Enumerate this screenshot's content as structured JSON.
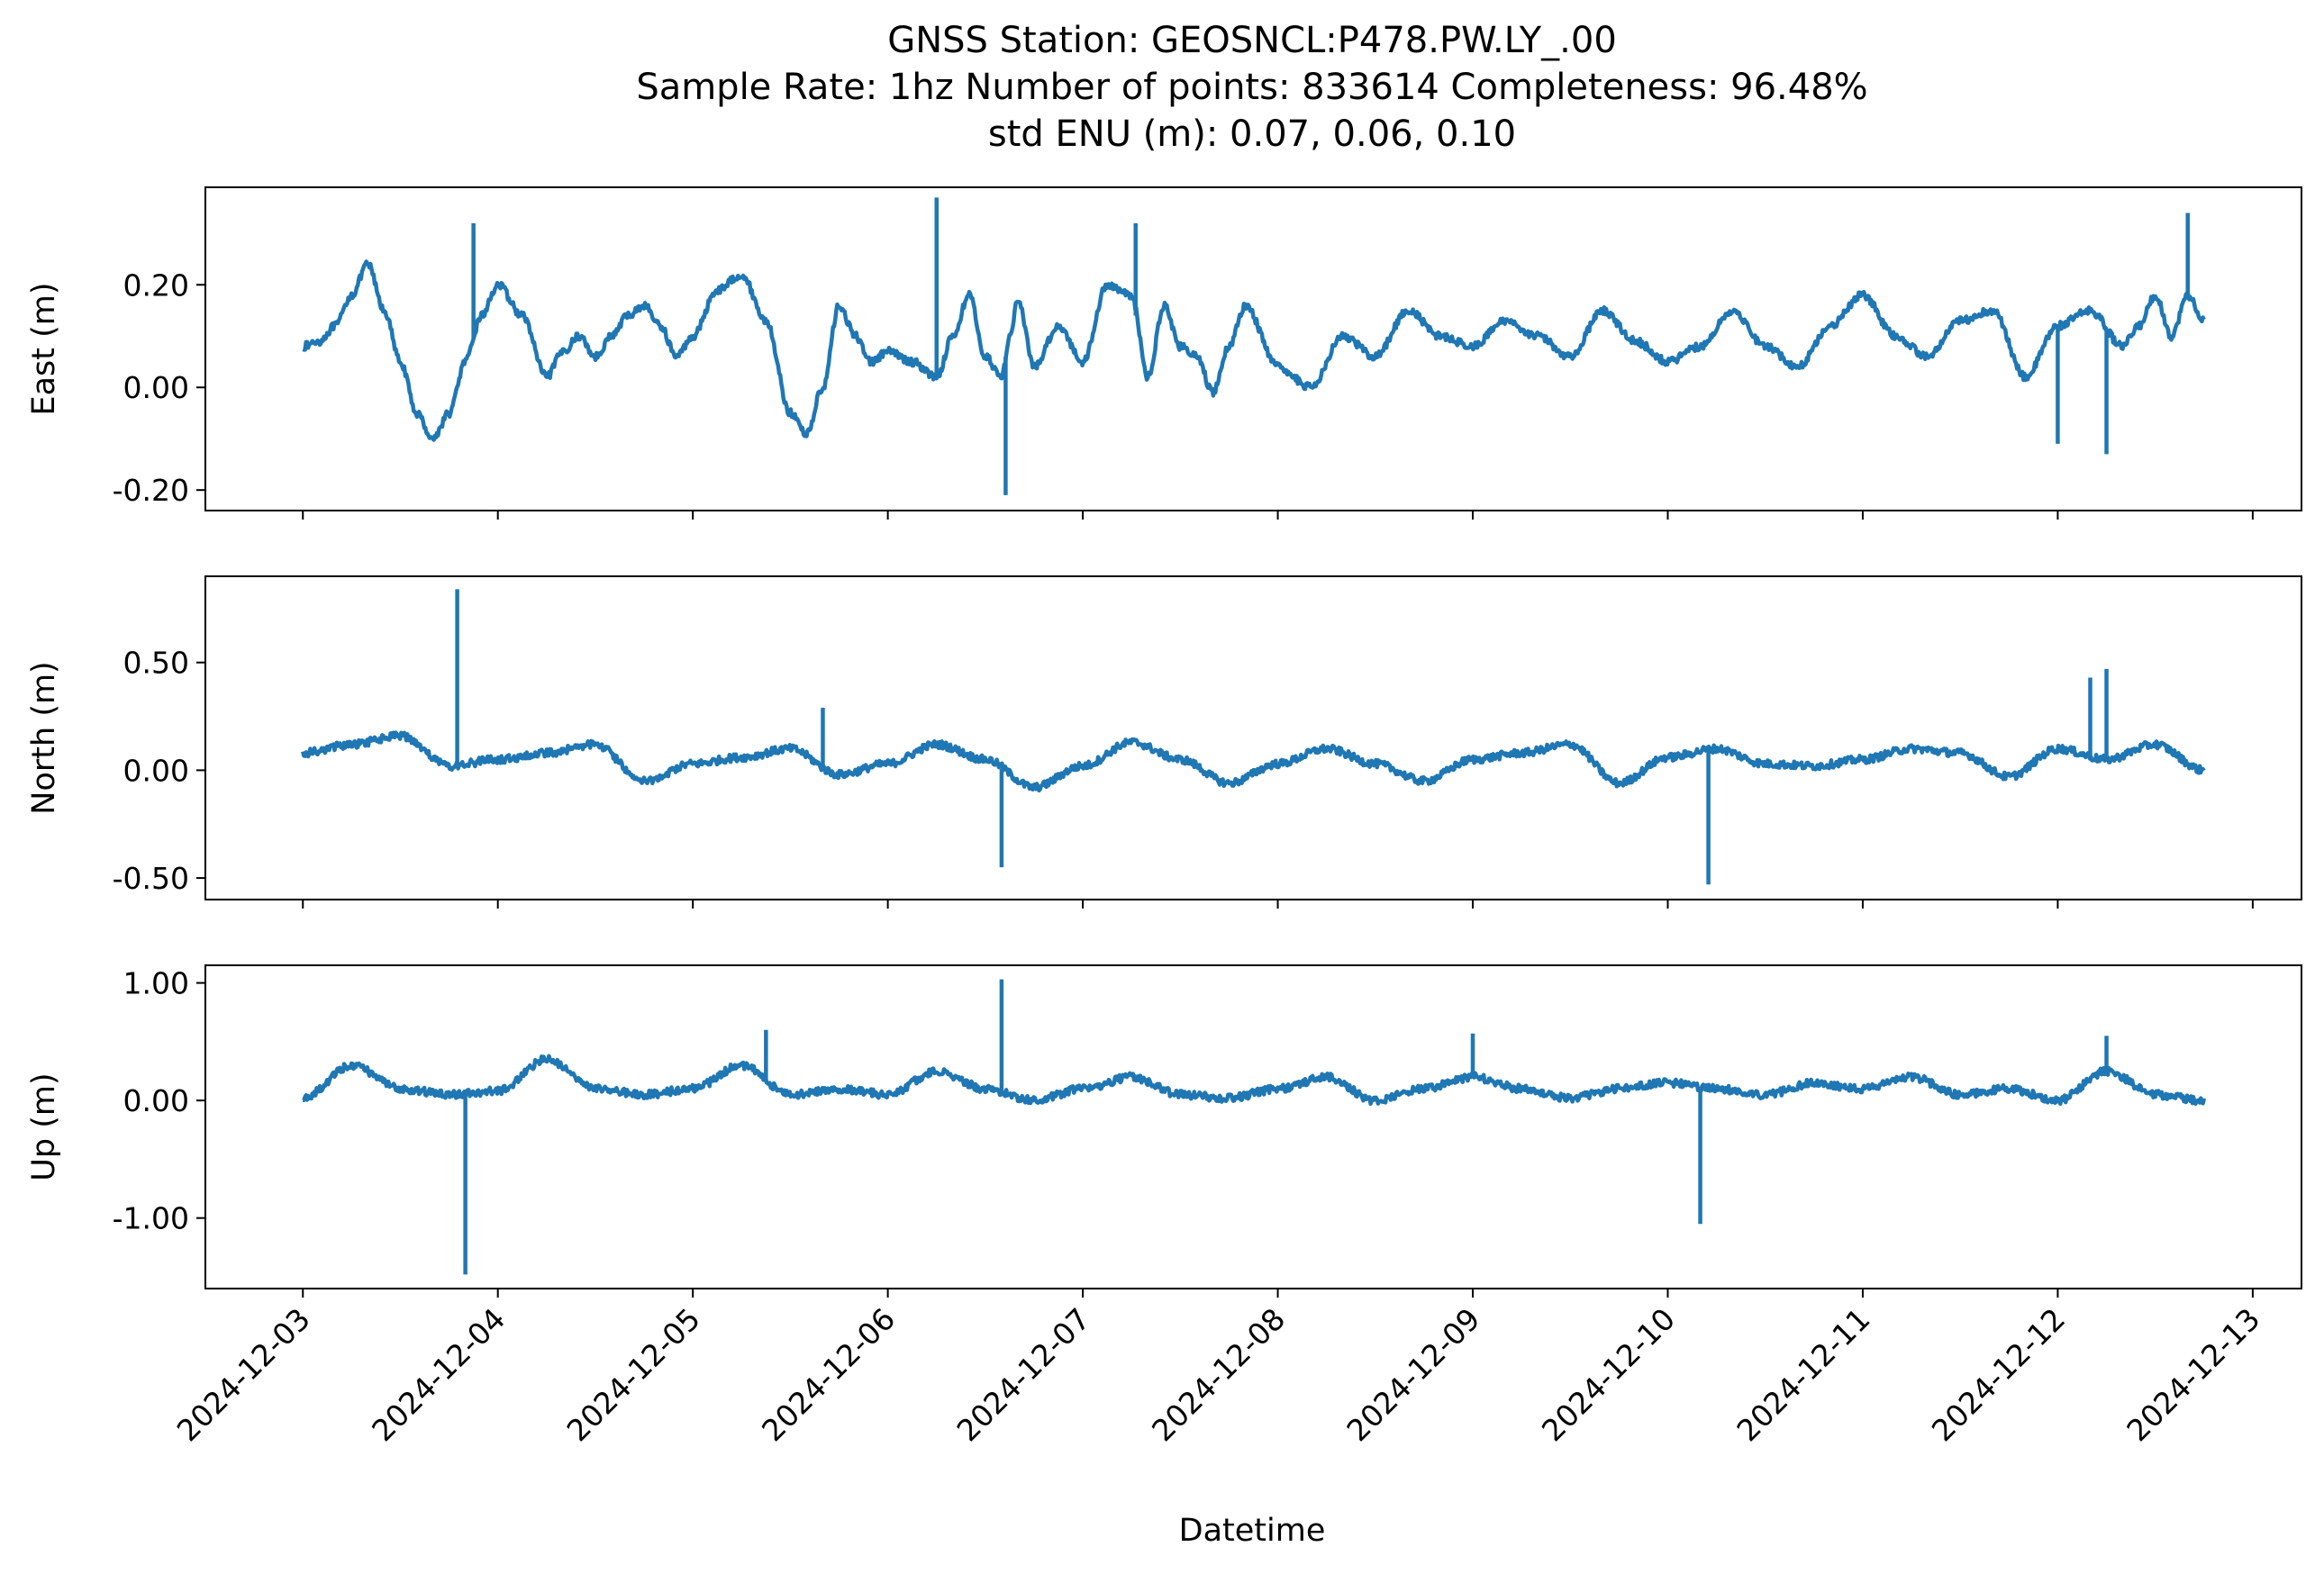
{
  "title_lines": [
    "GNSS Station: GEOSNCL:P478.PW.LY_.00",
    "Sample Rate: 1hz   Number of points: 833614    Completeness:  96.48%",
    "std ENU (m):  0.07, 0.06, 0.10"
  ],
  "x_axis": {
    "label": "Datetime",
    "tick_labels": [
      "2024-12-03",
      "2024-12-04",
      "2024-12-05",
      "2024-12-06",
      "2024-12-07",
      "2024-12-08",
      "2024-12-09",
      "2024-12-10",
      "2024-12-11",
      "2024-12-12",
      "2024-12-13"
    ]
  },
  "colors": {
    "series": "#1f77b4",
    "axes": "#000000",
    "background": "#ffffff"
  },
  "chart_data": [
    {
      "type": "line",
      "title": "",
      "xlabel": "",
      "ylabel": "East (m)",
      "xlim": [
        "2024-12-02T12:00",
        "2024-12-13T06:00"
      ],
      "ylim": [
        -0.24,
        0.39
      ],
      "yticks": [
        -0.2,
        0.0,
        0.2
      ],
      "ytick_labels": [
        "-0.20",
        "0.00",
        "0.20"
      ],
      "grid": false,
      "series": [
        {
          "x": [
            "2024-12-03T00:00",
            "2024-12-03T02:00",
            "2024-12-03T04:00",
            "2024-12-03T06:00",
            "2024-12-03T08:00",
            "2024-12-03T10:00",
            "2024-12-03T12:00",
            "2024-12-03T14:00",
            "2024-12-03T16:00",
            "2024-12-03T18:00",
            "2024-12-03T20:00",
            "2024-12-03T22:00",
            "2024-12-04T00:00",
            "2024-12-04T03:00",
            "2024-12-04T06:00",
            "2024-12-04T08:00",
            "2024-12-04T10:00",
            "2024-12-04T12:00",
            "2024-12-04T14:00",
            "2024-12-04T16:00",
            "2024-12-04T18:00",
            "2024-12-04T20:00",
            "2024-12-04T22:00",
            "2024-12-05T00:00",
            "2024-12-05T03:00",
            "2024-12-05T06:00",
            "2024-12-05T09:00",
            "2024-12-05T12:00",
            "2024-12-05T14:00",
            "2024-12-05T16:00",
            "2024-12-05T18:00",
            "2024-12-05T20:00",
            "2024-12-05T22:00",
            "2024-12-06T00:00",
            "2024-12-06T03:00",
            "2024-12-06T06:00",
            "2024-12-06T08:00",
            "2024-12-06T10:00",
            "2024-12-06T12:00",
            "2024-12-06T14:00",
            "2024-12-06T15:00",
            "2024-12-06T16:00",
            "2024-12-06T18:00",
            "2024-12-06T21:00",
            "2024-12-07T00:00",
            "2024-12-07T03:00",
            "2024-12-07T06:00",
            "2024-12-07T08:00",
            "2024-12-07T10:00",
            "2024-12-07T12:00",
            "2024-12-07T14:00",
            "2024-12-07T16:00",
            "2024-12-07T18:00",
            "2024-12-07T20:00",
            "2024-12-08T00:00",
            "2024-12-08T04:00",
            "2024-12-08T08:00",
            "2024-12-08T12:00",
            "2024-12-08T16:00",
            "2024-12-08T20:00",
            "2024-12-09T00:00",
            "2024-12-09T04:00",
            "2024-12-09T08:00",
            "2024-12-09T12:00",
            "2024-12-09T16:00",
            "2024-12-09T20:00",
            "2024-12-10T00:00",
            "2024-12-10T04:00",
            "2024-12-10T08:00",
            "2024-12-10T12:00",
            "2024-12-10T16:00",
            "2024-12-10T20:00",
            "2024-12-11T00:00",
            "2024-12-11T04:00",
            "2024-12-11T08:00",
            "2024-12-11T12:00",
            "2024-12-11T16:00",
            "2024-12-11T20:00",
            "2024-12-12T00:00",
            "2024-12-12T04:00",
            "2024-12-12T08:00",
            "2024-12-12T10:00",
            "2024-12-12T12:00",
            "2024-12-12T14:00",
            "2024-12-12T16:00",
            "2024-12-12T18:00"
          ],
          "y": [
            0.08,
            0.09,
            0.12,
            0.18,
            0.24,
            0.15,
            0.05,
            -0.05,
            -0.1,
            -0.05,
            0.05,
            0.14,
            0.2,
            0.14,
            0.02,
            0.07,
            0.1,
            0.06,
            0.1,
            0.14,
            0.16,
            0.12,
            0.06,
            0.1,
            0.19,
            0.22,
            0.13,
            -0.05,
            -0.09,
            0.0,
            0.16,
            0.1,
            0.05,
            0.07,
            0.05,
            0.02,
            0.1,
            0.18,
            0.06,
            0.02,
            0.1,
            0.17,
            0.04,
            0.12,
            0.05,
            0.2,
            0.18,
            0.02,
            0.16,
            0.08,
            0.06,
            -0.01,
            0.08,
            0.16,
            0.04,
            0.0,
            0.1,
            0.06,
            0.15,
            0.1,
            0.08,
            0.13,
            0.1,
            0.06,
            0.15,
            0.09,
            0.05,
            0.08,
            0.15,
            0.08,
            0.04,
            0.12,
            0.18,
            0.1,
            0.06,
            0.13,
            0.15,
            0.02,
            0.12,
            0.15,
            0.08,
            0.12,
            0.18,
            0.1,
            0.18,
            0.13
          ],
          "spikes": [
            {
              "x": "2024-12-03T21:00",
              "y": 0.32
            },
            {
              "x": "2024-12-06T06:00",
              "y": 0.37
            },
            {
              "x": "2024-12-06T14:30",
              "y": -0.21
            },
            {
              "x": "2024-12-07T06:30",
              "y": 0.32
            },
            {
              "x": "2024-12-12T00:00",
              "y": -0.11
            },
            {
              "x": "2024-12-12T06:00",
              "y": -0.13
            },
            {
              "x": "2024-12-12T16:00",
              "y": 0.34
            }
          ]
        }
      ]
    },
    {
      "type": "line",
      "title": "",
      "xlabel": "",
      "ylabel": "North (m)",
      "xlim": [
        "2024-12-02T12:00",
        "2024-12-13T06:00"
      ],
      "ylim": [
        -0.6,
        0.9
      ],
      "yticks": [
        -0.5,
        0.0,
        0.5
      ],
      "ytick_labels": [
        "-0.50",
        "0.00",
        "0.50"
      ],
      "grid": false,
      "series": [
        {
          "x": [
            "2024-12-03T00:00",
            "2024-12-03T06:00",
            "2024-12-03T12:00",
            "2024-12-03T18:00",
            "2024-12-04T00:00",
            "2024-12-04T06:00",
            "2024-12-04T12:00",
            "2024-12-04T18:00",
            "2024-12-05T00:00",
            "2024-12-05T06:00",
            "2024-12-05T12:00",
            "2024-12-05T18:00",
            "2024-12-06T00:00",
            "2024-12-06T06:00",
            "2024-12-06T12:00",
            "2024-12-06T18:00",
            "2024-12-07T00:00",
            "2024-12-07T06:00",
            "2024-12-07T12:00",
            "2024-12-07T18:00",
            "2024-12-08T00:00",
            "2024-12-08T06:00",
            "2024-12-08T12:00",
            "2024-12-08T18:00",
            "2024-12-09T00:00",
            "2024-12-09T06:00",
            "2024-12-09T12:00",
            "2024-12-09T18:00",
            "2024-12-10T00:00",
            "2024-12-10T06:00",
            "2024-12-10T12:00",
            "2024-12-10T18:00",
            "2024-12-11T00:00",
            "2024-12-11T06:00",
            "2024-12-11T12:00",
            "2024-12-11T18:00",
            "2024-12-12T00:00",
            "2024-12-12T06:00",
            "2024-12-12T12:00",
            "2024-12-12T18:00"
          ],
          "y": [
            0.08,
            0.12,
            0.16,
            0.02,
            0.05,
            0.08,
            0.12,
            -0.05,
            0.03,
            0.06,
            0.1,
            -0.02,
            0.03,
            0.12,
            0.05,
            -0.08,
            0.02,
            0.13,
            0.05,
            -0.06,
            0.03,
            0.1,
            0.03,
            -0.05,
            0.05,
            0.08,
            0.12,
            -0.06,
            0.06,
            0.1,
            0.03,
            0.02,
            0.05,
            0.1,
            0.08,
            -0.03,
            0.1,
            0.05,
            0.12,
            0.0
          ],
          "spikes": [
            {
              "x": "2024-12-03T19:00",
              "y": 0.84
            },
            {
              "x": "2024-12-05T16:00",
              "y": 0.29
            },
            {
              "x": "2024-12-06T14:00",
              "y": -0.45
            },
            {
              "x": "2024-12-10T05:00",
              "y": -0.53
            },
            {
              "x": "2024-12-12T04:00",
              "y": 0.43
            },
            {
              "x": "2024-12-12T06:00",
              "y": 0.47
            }
          ]
        }
      ]
    },
    {
      "type": "line",
      "title": "",
      "xlabel": "Datetime",
      "ylabel": "Up (m)",
      "xlim": [
        "2024-12-02T12:00",
        "2024-12-13T06:00"
      ],
      "ylim": [
        -1.6,
        1.15
      ],
      "yticks": [
        -1.0,
        0.0,
        1.0
      ],
      "ytick_labels": [
        "-1.00",
        "0.00",
        "1.00"
      ],
      "grid": false,
      "series": [
        {
          "x": [
            "2024-12-03T00:00",
            "2024-12-03T06:00",
            "2024-12-03T12:00",
            "2024-12-03T18:00",
            "2024-12-04T00:00",
            "2024-12-04T06:00",
            "2024-12-04T12:00",
            "2024-12-04T18:00",
            "2024-12-05T00:00",
            "2024-12-05T06:00",
            "2024-12-05T12:00",
            "2024-12-05T18:00",
            "2024-12-06T00:00",
            "2024-12-06T06:00",
            "2024-12-06T12:00",
            "2024-12-06T18:00",
            "2024-12-07T00:00",
            "2024-12-07T06:00",
            "2024-12-07T12:00",
            "2024-12-07T18:00",
            "2024-12-08T00:00",
            "2024-12-08T06:00",
            "2024-12-08T12:00",
            "2024-12-08T18:00",
            "2024-12-09T00:00",
            "2024-12-09T06:00",
            "2024-12-09T12:00",
            "2024-12-09T18:00",
            "2024-12-10T00:00",
            "2024-12-10T06:00",
            "2024-12-10T12:00",
            "2024-12-10T18:00",
            "2024-12-11T00:00",
            "2024-12-11T06:00",
            "2024-12-11T12:00",
            "2024-12-11T18:00",
            "2024-12-12T00:00",
            "2024-12-12T06:00",
            "2024-12-12T12:00",
            "2024-12-12T18:00"
          ],
          "y": [
            0.02,
            0.3,
            0.1,
            0.05,
            0.08,
            0.35,
            0.1,
            0.05,
            0.1,
            0.3,
            0.05,
            0.1,
            0.05,
            0.25,
            0.1,
            0.0,
            0.1,
            0.2,
            0.05,
            0.02,
            0.1,
            0.2,
            0.0,
            0.1,
            0.2,
            0.1,
            0.02,
            0.1,
            0.15,
            0.1,
            0.05,
            0.15,
            0.1,
            0.2,
            0.05,
            0.1,
            0.0,
            0.25,
            0.05,
            0.0
          ],
          "spikes": [
            {
              "x": "2024-12-03T20:00",
              "y": -1.48
            },
            {
              "x": "2024-12-05T09:00",
              "y": 0.6
            },
            {
              "x": "2024-12-06T14:00",
              "y": 1.03
            },
            {
              "x": "2024-12-09T00:00",
              "y": 0.57
            },
            {
              "x": "2024-12-10T04:00",
              "y": -1.05
            },
            {
              "x": "2024-12-12T06:00",
              "y": 0.55
            }
          ]
        }
      ]
    }
  ]
}
